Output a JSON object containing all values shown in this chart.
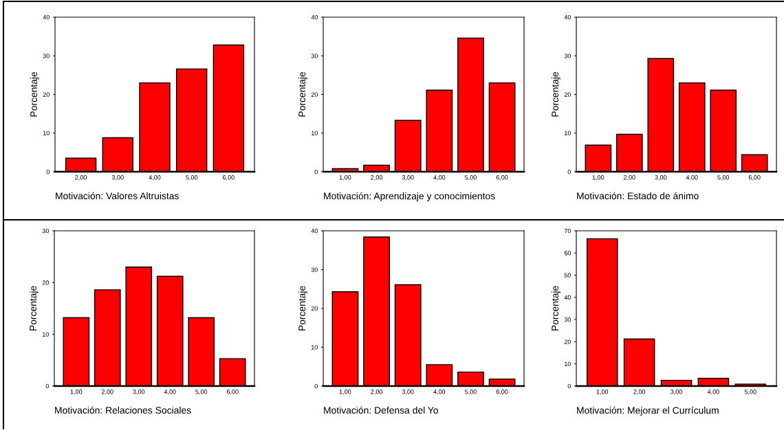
{
  "chart_data": [
    {
      "type": "bar",
      "xlabel": "Motivación: Valores Altruistas",
      "ylabel": "Porcentaje",
      "categories": [
        "2,00",
        "3,00",
        "4,00",
        "5,00",
        "6,00"
      ],
      "values": [
        3.5,
        8.8,
        23.0,
        26.6,
        32.8
      ],
      "color": "#ff0000",
      "ylim": [
        0,
        40
      ],
      "yticks": [
        0,
        10,
        20,
        30,
        40
      ],
      "grid": false
    },
    {
      "type": "bar",
      "xlabel": "Motivación: Aprendizaje y conocimientos",
      "ylabel": "Porcentaje",
      "categories": [
        "1,00",
        "2,00",
        "3,00",
        "4,00",
        "5,00",
        "6,00"
      ],
      "values": [
        0.8,
        1.7,
        13.3,
        21.1,
        34.6,
        23.0
      ],
      "color": "#ff0000",
      "ylim": [
        0,
        40
      ],
      "yticks": [
        0,
        10,
        20,
        30,
        40
      ],
      "grid": false
    },
    {
      "type": "bar",
      "xlabel": "Motivación: Estado de ánimo",
      "ylabel": "Porcentaje",
      "categories": [
        "1,00",
        "2,00",
        "3,00",
        "4,00",
        "5,00",
        "6,00"
      ],
      "values": [
        6.9,
        9.7,
        29.3,
        23.0,
        21.1,
        4.4
      ],
      "color": "#ff0000",
      "ylim": [
        0,
        40
      ],
      "yticks": [
        0,
        10,
        20,
        30,
        40
      ],
      "grid": false
    },
    {
      "type": "bar",
      "xlabel": "Motivación: Relaciones Sociales",
      "ylabel": "Porcentaje",
      "categories": [
        "1,00",
        "2,00",
        "3,00",
        "4,00",
        "5,00",
        "6,00"
      ],
      "values": [
        13.2,
        18.6,
        23.0,
        21.2,
        13.2,
        5.3
      ],
      "color": "#ff0000",
      "ylim": [
        0,
        30
      ],
      "yticks": [
        0,
        10,
        20,
        30
      ],
      "grid": false
    },
    {
      "type": "bar",
      "xlabel": "Motivación: Defensa del Yo",
      "ylabel": "Porcentaje",
      "categories": [
        "1,00",
        "2,00",
        "3,00",
        "4,00",
        "5,00",
        "6,00"
      ],
      "values": [
        24.3,
        38.4,
        26.1,
        5.5,
        3.6,
        1.8
      ],
      "color": "#ff0000",
      "ylim": [
        0,
        40
      ],
      "yticks": [
        0,
        10,
        20,
        30,
        40
      ],
      "grid": false
    },
    {
      "type": "bar",
      "xlabel": "Motivación: Mejorar el Currículum",
      "ylabel": "Porcentaje",
      "categories": [
        "1,00",
        "2,00",
        "3,00",
        "4,00",
        "5,00"
      ],
      "values": [
        66.4,
        21.2,
        2.6,
        3.5,
        0.9
      ],
      "color": "#ff0000",
      "ylim": [
        0,
        70
      ],
      "yticks": [
        0,
        10,
        20,
        30,
        40,
        50,
        60,
        70
      ],
      "grid": false
    }
  ]
}
